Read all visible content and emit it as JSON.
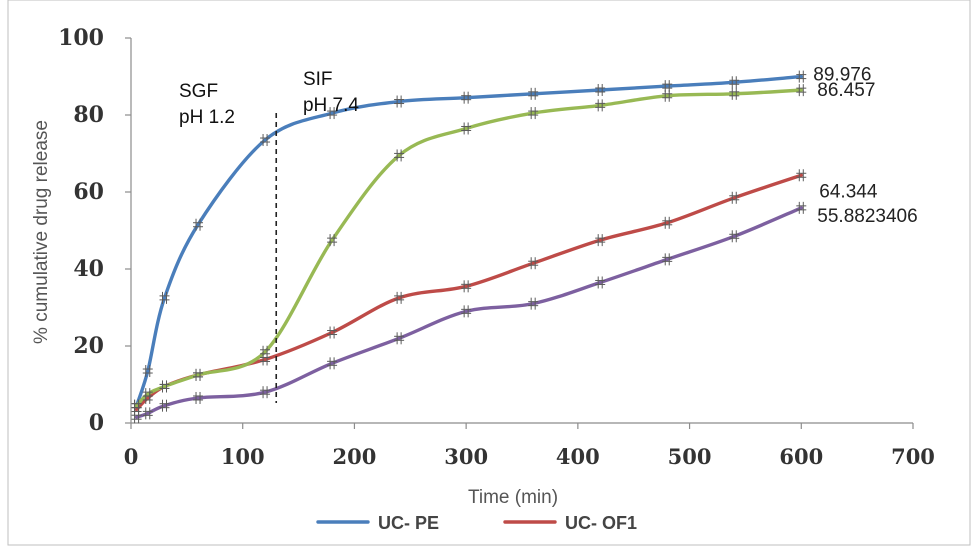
{
  "chart_data": {
    "type": "line",
    "xlabel": "Time (min)",
    "ylabel": "% cumulative drug release",
    "xlim": [
      0,
      700
    ],
    "ylim": [
      0,
      100
    ],
    "xticks": [
      "0",
      "100",
      "200",
      "300",
      "400",
      "500",
      "600",
      "700"
    ],
    "yticks": [
      "0",
      "20",
      "40",
      "60",
      "80",
      "100"
    ],
    "grid": false,
    "legend_position": "bottom",
    "annotations": [
      {
        "lines": [
          "SGF",
          "pH 1.2"
        ],
        "x": 125,
        "y": 80
      },
      {
        "lines": [
          "SIF",
          "pH 7.4"
        ],
        "x": 145,
        "y": 80
      }
    ],
    "divider_x": 130,
    "series": [
      {
        "name": "UC- PE",
        "color": "#4a7ebb",
        "x": [
          5,
          15,
          30,
          60,
          120,
          180,
          240,
          300,
          360,
          420,
          480,
          540,
          600
        ],
        "y": [
          4.5,
          13.5,
          32.5,
          51.5,
          73.5,
          80.5,
          83.5,
          84.5,
          85.5,
          86.5,
          87.5,
          88.5,
          89.976
        ],
        "end_label": "89.976"
      },
      {
        "name": "UC- OF1",
        "color": "#be4b48",
        "x": [
          5,
          15,
          30,
          60,
          120,
          180,
          240,
          300,
          360,
          420,
          480,
          540,
          600
        ],
        "y": [
          3.5,
          6.5,
          9.5,
          12.5,
          16.5,
          23.5,
          32.5,
          35.5,
          41.5,
          47.5,
          52,
          58.5,
          64.344
        ],
        "end_label": "64.344"
      },
      {
        "color": "#98b954",
        "x": [
          5,
          15,
          30,
          60,
          120,
          180,
          240,
          300,
          360,
          420,
          480,
          540,
          600
        ],
        "y": [
          4.5,
          7.5,
          9.5,
          12.5,
          18.5,
          47.5,
          69.5,
          76.5,
          80.5,
          82.5,
          85,
          85.5,
          86.457
        ],
        "end_label": "86.457"
      },
      {
        "color": "#7d60a0",
        "x": [
          5,
          15,
          30,
          60,
          120,
          180,
          240,
          300,
          360,
          420,
          480,
          540,
          600
        ],
        "y": [
          1.5,
          2.5,
          4.5,
          6.5,
          8,
          15.5,
          22,
          29,
          31,
          36.5,
          42.5,
          48.5,
          55.8823406
        ],
        "end_label": "55.8823406"
      }
    ]
  }
}
